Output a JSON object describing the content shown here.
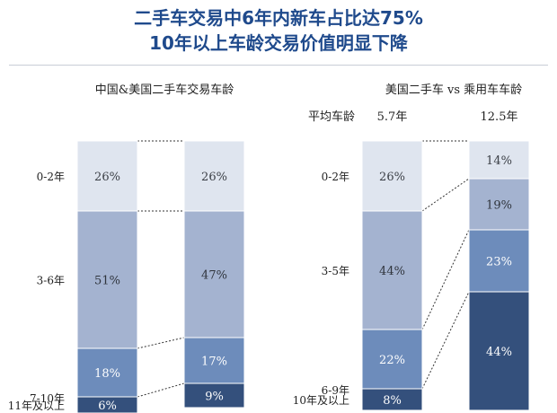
{
  "header": {
    "line1": "二手车交易中6年内新车占比达75%",
    "line2": "10年以上车龄交易价值明显下降"
  },
  "colors": {
    "title": "#1f4a8c",
    "seg1": "#dfe5ef",
    "seg2": "#a4b3d0",
    "seg3": "#6d8cbb",
    "seg4": "#34507c"
  },
  "chart_data": [
    {
      "type": "bar",
      "stacked": true,
      "title": "中国&美国二手车交易车龄",
      "categories": [
        "",
        ""
      ],
      "row_labels": [
        "0-2年",
        "3-6年",
        "7-10年",
        "11年及以上"
      ],
      "series": [
        {
          "values": [
            26,
            26
          ],
          "labels": [
            "26%",
            "26%"
          ]
        },
        {
          "values": [
            51,
            47
          ],
          "labels": [
            "51%",
            "47%"
          ]
        },
        {
          "values": [
            18,
            17
          ],
          "labels": [
            "18%",
            "17%"
          ]
        },
        {
          "values": [
            6,
            9
          ],
          "labels": [
            "6%",
            "9%"
          ]
        }
      ]
    },
    {
      "type": "bar",
      "stacked": true,
      "title": "美国二手车 vs 乘用车车龄",
      "categories": [
        "5.7年",
        "12.5年"
      ],
      "category_caption": "平均车龄",
      "row_labels": [
        "0-2年",
        "3-5年",
        "6-9年",
        "10年及以上"
      ],
      "series": [
        {
          "values": [
            26,
            14
          ],
          "labels": [
            "26%",
            "14%"
          ]
        },
        {
          "values": [
            44,
            19
          ],
          "labels": [
            "44%",
            "19%"
          ]
        },
        {
          "values": [
            22,
            23
          ],
          "labels": [
            "22%",
            "23%"
          ]
        },
        {
          "values": [
            8,
            44
          ],
          "labels": [
            "8%",
            "44%"
          ]
        }
      ]
    }
  ]
}
